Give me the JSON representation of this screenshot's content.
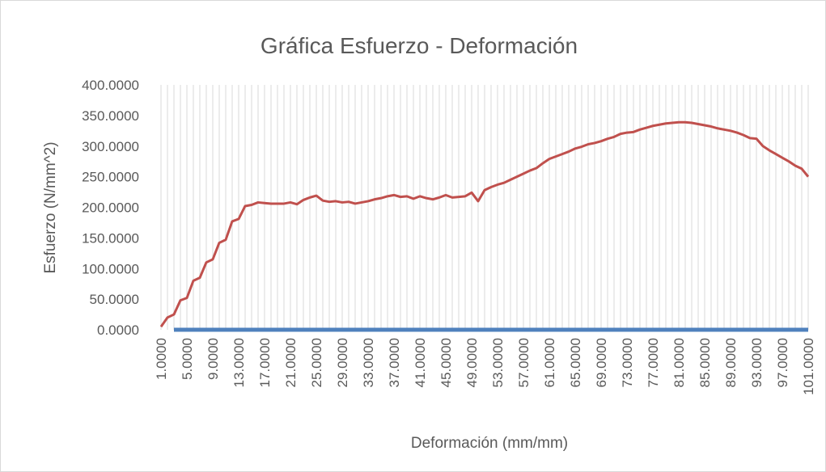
{
  "chart_data": {
    "type": "line",
    "title": "Gráfica Esfuerzo - Deformación",
    "x_label": "Deformación (mm/mm)",
    "y_label": "Esfuerzo (N/mm^2)",
    "categories": [
      "1.0000",
      null,
      null,
      null,
      "5.0000",
      null,
      null,
      null,
      "9.0000",
      null,
      null,
      null,
      "13.0000",
      null,
      null,
      null,
      "17.0000",
      null,
      null,
      null,
      "21.0000",
      null,
      null,
      null,
      "25.0000",
      null,
      null,
      null,
      "29.0000",
      null,
      null,
      null,
      "33.0000",
      null,
      null,
      null,
      "37.0000",
      null,
      null,
      null,
      "41.0000",
      null,
      null,
      null,
      "45.0000",
      null,
      null,
      null,
      "49.0000",
      null,
      null,
      null,
      "53.0000",
      null,
      null,
      null,
      "57.0000",
      null,
      null,
      null,
      "61.0000",
      null,
      null,
      null,
      "65.0000",
      null,
      null,
      null,
      "69.0000",
      null,
      null,
      null,
      "73.0000",
      null,
      null,
      null,
      "77.0000",
      null,
      null,
      null,
      "81.0000",
      null,
      null,
      null,
      "85.0000",
      null,
      null,
      null,
      "89.0000",
      null,
      null,
      null,
      "93.0000",
      null,
      null,
      null,
      "97.0000",
      null,
      null,
      null,
      "101.0000"
    ],
    "series": [
      {
        "color": "#c0504d",
        "values": [
          5,
          20,
          25,
          48,
          52,
          80,
          85,
          110,
          115,
          142,
          147,
          177,
          181,
          202,
          204,
          208,
          207,
          206,
          206,
          206,
          208,
          205,
          212,
          216,
          219,
          211,
          209,
          210,
          208,
          209,
          206,
          208,
          210,
          213,
          215,
          218,
          220,
          217,
          218,
          214,
          218,
          215,
          213,
          216,
          220,
          216,
          217,
          218,
          224,
          210,
          228,
          233,
          237,
          240,
          245,
          250,
          255,
          260,
          264,
          272,
          279,
          283,
          287,
          291,
          296,
          299,
          303,
          305,
          308,
          312,
          315,
          320,
          322,
          323,
          327,
          330,
          333,
          335,
          337,
          338,
          339,
          339,
          338,
          336,
          334,
          332,
          329,
          327,
          325,
          322,
          318,
          313,
          312,
          300,
          293,
          287,
          281,
          275,
          268,
          263,
          250
        ]
      },
      {
        "color": "#4f81bd",
        "values": [
          null,
          null,
          0,
          0,
          0,
          0,
          0,
          0,
          0,
          0,
          0,
          0,
          0,
          0,
          0,
          0,
          0,
          0,
          0,
          0,
          0,
          0,
          0,
          0,
          0,
          0,
          0,
          0,
          0,
          0,
          0,
          0,
          0,
          0,
          0,
          0,
          0,
          0,
          0,
          0,
          0,
          0,
          0,
          0,
          0,
          0,
          0,
          0,
          0,
          0,
          0,
          0,
          0,
          0,
          0,
          0,
          0,
          0,
          0,
          0,
          0,
          0,
          0,
          0,
          0,
          0,
          0,
          0,
          0,
          0,
          0,
          0,
          0,
          0,
          0,
          0,
          0,
          0,
          0,
          0,
          0,
          0,
          0,
          0,
          0,
          0,
          0,
          0,
          0,
          0,
          0,
          0,
          0,
          0,
          0,
          0,
          0,
          0,
          0,
          0,
          0
        ]
      }
    ],
    "ylim": [
      0,
      400
    ],
    "yticks": [
      {
        "value": 0,
        "label": "0.0000"
      },
      {
        "value": 50,
        "label": "50.0000"
      },
      {
        "value": 100,
        "label": "100.0000"
      },
      {
        "value": 150,
        "label": "150.0000"
      },
      {
        "value": 200,
        "label": "200.0000"
      },
      {
        "value": 250,
        "label": "250.0000"
      },
      {
        "value": 300,
        "label": "300.0000"
      },
      {
        "value": 350,
        "label": "350.0000"
      },
      {
        "value": 400,
        "label": "400.0000"
      }
    ],
    "grid": true
  }
}
